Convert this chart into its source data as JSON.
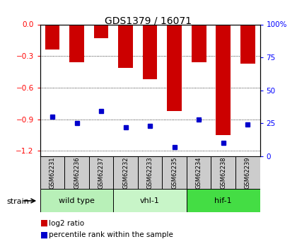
{
  "title": "GDS1379 / 16071",
  "samples": [
    "GSM62231",
    "GSM62236",
    "GSM62237",
    "GSM62232",
    "GSM62233",
    "GSM62235",
    "GSM62234",
    "GSM62238",
    "GSM62239"
  ],
  "log2_ratio": [
    -0.24,
    -0.36,
    -0.13,
    -0.41,
    -0.52,
    -0.82,
    -0.36,
    -1.05,
    -0.37
  ],
  "percentile_rank": [
    30,
    25,
    34,
    22,
    23,
    7,
    28,
    10,
    24
  ],
  "bar_color": "#cc0000",
  "pct_color": "#0000cc",
  "ylim_left": [
    -1.25,
    0.0
  ],
  "ylim_right": [
    0,
    100
  ],
  "yticks_left": [
    0,
    -0.3,
    -0.6,
    -0.9,
    -1.2
  ],
  "yticks_right": [
    0,
    25,
    50,
    75,
    100
  ],
  "left_axis_color": "red",
  "right_axis_color": "blue",
  "group_spans": [
    [
      0,
      2,
      "wild type",
      "#b8f0b8"
    ],
    [
      3,
      5,
      "vhl-1",
      "#c8f5c8"
    ],
    [
      6,
      8,
      "hif-1",
      "#44dd44"
    ]
  ],
  "xtick_bg": "#cccccc"
}
